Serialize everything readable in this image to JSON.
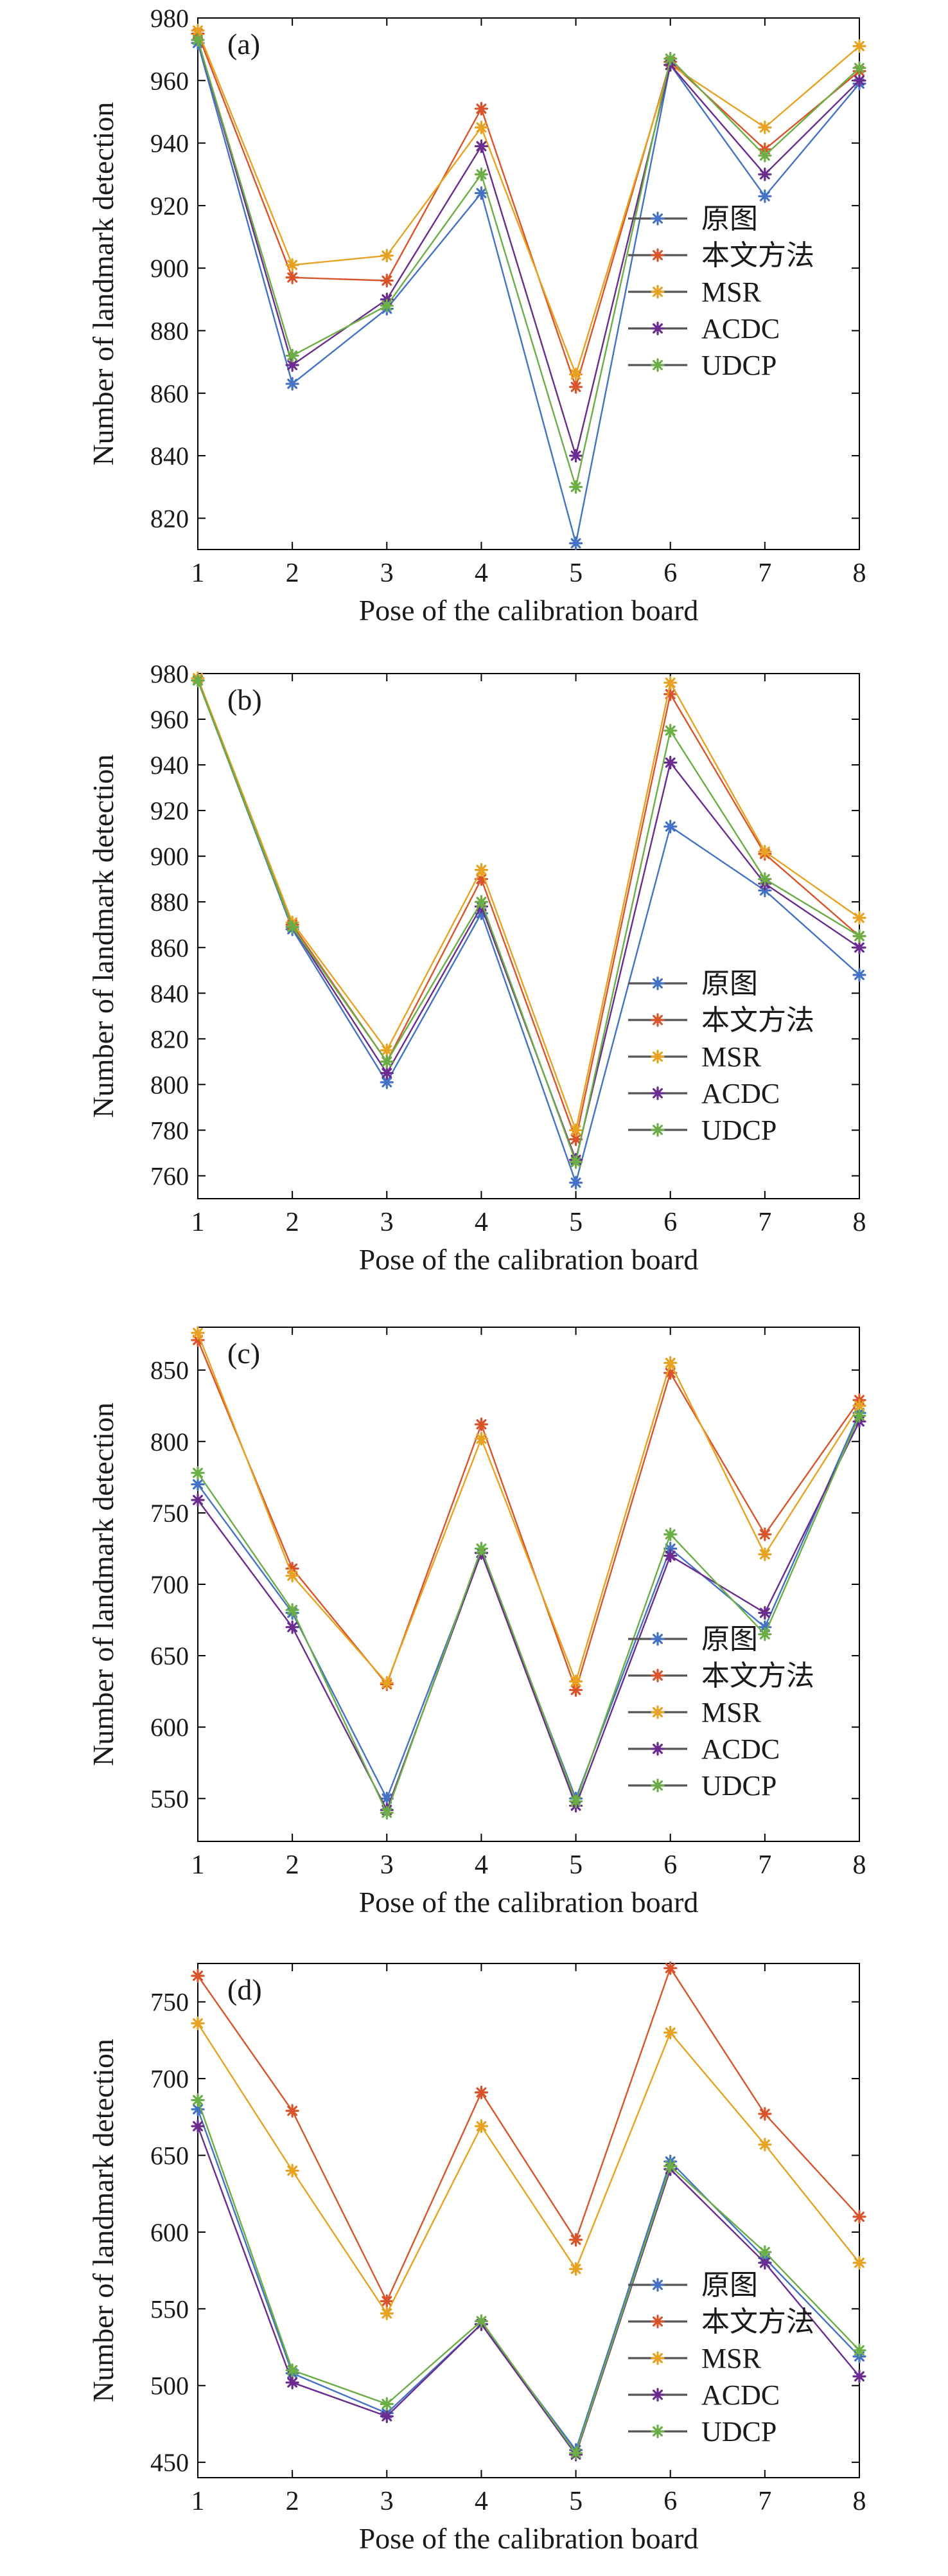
{
  "figure": {
    "legend_labels": [
      "原图",
      "本文方法",
      "MSR",
      "ACDC",
      "UDCP"
    ],
    "series_colors": [
      "#4472C4",
      "#D9542A",
      "#E8A221",
      "#6A2C8E",
      "#6BAE45"
    ],
    "legend_line_color": "#555555",
    "marker": "asterisk-star",
    "line_width": 1.5
  },
  "chart_data": [
    {
      "type": "line",
      "panel_label": "(a)",
      "xlabel": "Pose of the calibration board",
      "ylabel": "Number of landmark detection",
      "x": [
        1,
        2,
        3,
        4,
        5,
        6,
        7,
        8
      ],
      "xticks": [
        "1",
        "2",
        "3",
        "4",
        "5",
        "6",
        "7",
        "8"
      ],
      "ylim": [
        810,
        980
      ],
      "yticks": [
        820,
        840,
        860,
        880,
        900,
        920,
        940,
        960,
        980
      ],
      "legend_position": "right-middle",
      "series": [
        {
          "name": "原图",
          "values": [
            972,
            863,
            887,
            924,
            812,
            965,
            923,
            959
          ]
        },
        {
          "name": "本文方法",
          "values": [
            975,
            897,
            896,
            951,
            862,
            966,
            938,
            963
          ]
        },
        {
          "name": "MSR",
          "values": [
            976,
            901,
            904,
            945,
            866,
            965,
            945,
            971
          ]
        },
        {
          "name": "ACDC",
          "values": [
            973,
            869,
            890,
            939,
            840,
            965,
            930,
            960
          ]
        },
        {
          "name": "UDCP",
          "values": [
            973,
            872,
            888,
            930,
            830,
            967,
            936,
            964
          ]
        }
      ]
    },
    {
      "type": "line",
      "panel_label": "(b)",
      "xlabel": "Pose of the calibration board",
      "ylabel": "Number of landmark detection",
      "x": [
        1,
        2,
        3,
        4,
        5,
        6,
        7,
        8
      ],
      "xticks": [
        "1",
        "2",
        "3",
        "4",
        "5",
        "6",
        "7",
        "8"
      ],
      "ylim": [
        750,
        980
      ],
      "yticks": [
        760,
        780,
        800,
        820,
        840,
        860,
        880,
        900,
        920,
        940,
        960,
        980
      ],
      "legend_position": "bottom-right",
      "series": [
        {
          "name": "原图",
          "values": [
            977,
            868,
            801,
            875,
            757,
            913,
            885,
            848
          ]
        },
        {
          "name": "本文方法",
          "values": [
            977,
            870,
            810,
            890,
            776,
            971,
            901,
            865
          ]
        },
        {
          "name": "MSR",
          "values": [
            978,
            871,
            815,
            894,
            780,
            976,
            902,
            873
          ]
        },
        {
          "name": "ACDC",
          "values": [
            977,
            869,
            805,
            878,
            767,
            941,
            888,
            860
          ]
        },
        {
          "name": "UDCP",
          "values": [
            977,
            869,
            810,
            880,
            766,
            955,
            890,
            865
          ]
        }
      ]
    },
    {
      "type": "line",
      "panel_label": "(c)",
      "xlabel": "Pose of the calibration board",
      "ylabel": "Number of landmark detection",
      "x": [
        1,
        2,
        3,
        4,
        5,
        6,
        7,
        8
      ],
      "xticks": [
        "1",
        "2",
        "3",
        "4",
        "5",
        "6",
        "7",
        "8"
      ],
      "ylim": [
        520,
        880
      ],
      "yticks": [
        550,
        600,
        650,
        700,
        750,
        800,
        850
      ],
      "legend_position": "bottom-right",
      "series": [
        {
          "name": "原图",
          "values": [
            770,
            680,
            550,
            722,
            550,
            725,
            670,
            820
          ]
        },
        {
          "name": "本文方法",
          "values": [
            871,
            711,
            630,
            812,
            626,
            848,
            735,
            829
          ]
        },
        {
          "name": "MSR",
          "values": [
            876,
            706,
            631,
            802,
            632,
            855,
            721,
            825
          ]
        },
        {
          "name": "ACDC",
          "values": [
            759,
            670,
            542,
            722,
            545,
            720,
            680,
            814
          ]
        },
        {
          "name": "UDCP",
          "values": [
            778,
            682,
            540,
            725,
            548,
            735,
            665,
            818
          ]
        }
      ]
    },
    {
      "type": "line",
      "panel_label": "(d)",
      "xlabel": "Pose of the calibration board",
      "ylabel": "Number of landmark detection",
      "x": [
        1,
        2,
        3,
        4,
        5,
        6,
        7,
        8
      ],
      "xticks": [
        "1",
        "2",
        "3",
        "4",
        "5",
        "6",
        "7",
        "8"
      ],
      "ylim": [
        440,
        775
      ],
      "yticks": [
        450,
        500,
        550,
        600,
        650,
        700,
        750
      ],
      "legend_position": "bottom-right",
      "series": [
        {
          "name": "原图",
          "values": [
            680,
            508,
            482,
            540,
            458,
            646,
            583,
            519
          ]
        },
        {
          "name": "本文方法",
          "values": [
            767,
            679,
            555,
            691,
            595,
            772,
            677,
            610
          ]
        },
        {
          "name": "MSR",
          "values": [
            736,
            640,
            547,
            669,
            576,
            730,
            657,
            580
          ]
        },
        {
          "name": "ACDC",
          "values": [
            669,
            502,
            480,
            540,
            455,
            641,
            580,
            506
          ]
        },
        {
          "name": "UDCP",
          "values": [
            686,
            510,
            488,
            542,
            456,
            643,
            587,
            523
          ]
        }
      ]
    }
  ]
}
